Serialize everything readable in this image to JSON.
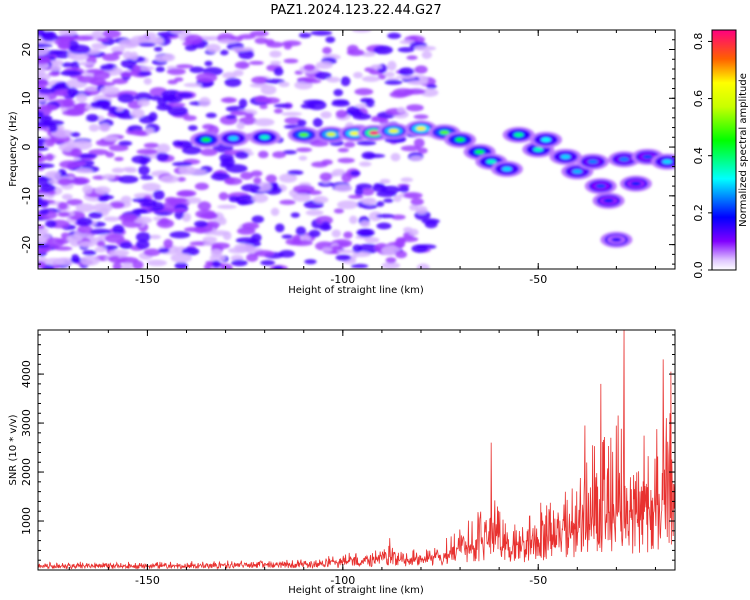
{
  "title": "PAZ1.2024.123.22.44.G27",
  "chart_data": [
    {
      "type": "heatmap",
      "xlabel": "Height of straight line (km)",
      "ylabel": "Frequency (Hz)",
      "xlim": [
        -178,
        -15
      ],
      "ylim": [
        -25,
        24
      ],
      "x_ticks": [
        -150,
        -100,
        -50
      ],
      "y_ticks": [
        20,
        10,
        0,
        -10,
        -20
      ],
      "colorbar": {
        "label": "Normalized spectral amplitude",
        "range": [
          0,
          0.84
        ],
        "ticks": [
          0.0,
          0.2,
          0.4,
          0.6,
          0.8
        ],
        "colormap": "gist_rainbow_r"
      },
      "ridge": [
        {
          "x": -135,
          "y": 1.5,
          "amp": 0.45
        },
        {
          "x": -128,
          "y": 1.8,
          "amp": 0.3
        },
        {
          "x": -120,
          "y": 2.0,
          "amp": 0.35
        },
        {
          "x": -110,
          "y": 2.5,
          "amp": 0.5
        },
        {
          "x": -103,
          "y": 2.6,
          "amp": 0.6
        },
        {
          "x": -97,
          "y": 2.8,
          "amp": 0.65
        },
        {
          "x": -92,
          "y": 2.9,
          "amp": 0.84
        },
        {
          "x": -87,
          "y": 3.3,
          "amp": 0.62
        },
        {
          "x": -80,
          "y": 3.8,
          "amp": 0.66
        },
        {
          "x": -74,
          "y": 3.0,
          "amp": 0.5
        },
        {
          "x": -70,
          "y": 1.5,
          "amp": 0.45
        },
        {
          "x": -65,
          "y": -1.0,
          "amp": 0.42
        },
        {
          "x": -62,
          "y": -3.0,
          "amp": 0.35
        },
        {
          "x": -58,
          "y": -4.5,
          "amp": 0.3
        },
        {
          "x": -55,
          "y": 2.5,
          "amp": 0.38
        },
        {
          "x": -50,
          "y": -0.5,
          "amp": 0.35
        },
        {
          "x": -48,
          "y": 1.5,
          "amp": 0.32
        },
        {
          "x": -43,
          "y": -2.0,
          "amp": 0.3
        },
        {
          "x": -40,
          "y": -5.0,
          "amp": 0.28
        },
        {
          "x": -36,
          "y": -3.0,
          "amp": 0.25
        },
        {
          "x": -34,
          "y": -8.0,
          "amp": 0.22
        },
        {
          "x": -32,
          "y": -11.0,
          "amp": 0.2
        },
        {
          "x": -28,
          "y": -2.5,
          "amp": 0.25
        },
        {
          "x": -25,
          "y": -7.5,
          "amp": 0.2
        },
        {
          "x": -22,
          "y": -2.0,
          "amp": 0.22
        },
        {
          "x": -17,
          "y": -3.0,
          "amp": 0.3
        },
        {
          "x": -30,
          "y": -19.0,
          "amp": 0.15
        }
      ]
    },
    {
      "type": "line",
      "xlabel": "Height of straight line (km)",
      "ylabel": "SNR (10 * v/v)",
      "xlim": [
        -178,
        -15
      ],
      "ylim": [
        0,
        4900
      ],
      "x_ticks": [
        -150,
        -100,
        -50
      ],
      "y_ticks": [
        1000,
        2000,
        3000,
        4000
      ],
      "line_color": "#e8312f",
      "envelope": [
        {
          "x": -178,
          "base": 80,
          "amp": 110
        },
        {
          "x": -140,
          "base": 90,
          "amp": 120
        },
        {
          "x": -110,
          "base": 120,
          "amp": 140
        },
        {
          "x": -95,
          "base": 200,
          "amp": 260
        },
        {
          "x": -88,
          "base": 280,
          "amp": 330
        },
        {
          "x": -80,
          "base": 240,
          "amp": 270
        },
        {
          "x": -75,
          "base": 260,
          "amp": 300
        },
        {
          "x": -70,
          "base": 450,
          "amp": 900
        },
        {
          "x": -62,
          "base": 600,
          "amp": 1300
        },
        {
          "x": -55,
          "base": 500,
          "amp": 1000
        },
        {
          "x": -45,
          "base": 700,
          "amp": 1600
        },
        {
          "x": -38,
          "base": 900,
          "amp": 2200
        },
        {
          "x": -30,
          "base": 1100,
          "amp": 3200
        },
        {
          "x": -25,
          "base": 1000,
          "amp": 2800
        },
        {
          "x": -15,
          "base": 1500,
          "amp": 3000
        }
      ],
      "peaks": [
        {
          "x": -62,
          "y": 2600
        },
        {
          "x": -88,
          "y": 650
        },
        {
          "x": -28,
          "y": 4900
        },
        {
          "x": -34,
          "y": 3800
        },
        {
          "x": -18,
          "y": 4300
        },
        {
          "x": -16,
          "y": 4050
        },
        {
          "x": -38,
          "y": 2950
        }
      ]
    }
  ]
}
